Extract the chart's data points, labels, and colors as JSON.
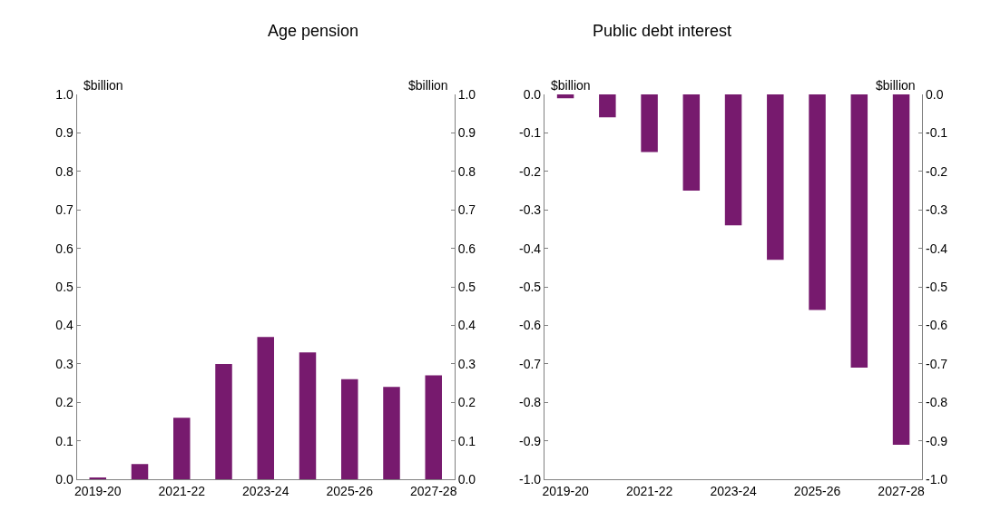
{
  "chart_data": [
    {
      "type": "bar",
      "title": "Age pension",
      "ylabel": "$billion",
      "y2label": "$billion",
      "categories": [
        "2019-20",
        null,
        "2021-22",
        null,
        "2023-24",
        null,
        "2025-26",
        null,
        "2027-28"
      ],
      "series": [
        {
          "color": "#771a6e",
          "values": [
            0.005,
            0.04,
            0.16,
            0.3,
            0.37,
            0.33,
            0.26,
            0.24,
            0.27
          ]
        }
      ],
      "ylim": [
        0,
        1
      ],
      "yticks": [
        {
          "value": 0,
          "label": "0.0"
        },
        0.1,
        0.2,
        0.3,
        0.4,
        0.5,
        0.6,
        0.7,
        0.8,
        0.9,
        {
          "value": 1,
          "label": "1.0"
        }
      ],
      "y2lim": [
        0,
        1
      ],
      "y2ticks": [
        {
          "value": 0,
          "label": "0.0"
        },
        0.1,
        0.2,
        0.3,
        0.4,
        0.5,
        0.6,
        0.7,
        0.8,
        0.9,
        {
          "value": 1,
          "label": "1.0"
        }
      ]
    },
    {
      "type": "bar",
      "title": "Public debt interest",
      "ylabel": "$billion",
      "y2label": "$billion",
      "categories": [
        "2019-20",
        null,
        "2021-22",
        null,
        "2023-24",
        null,
        "2025-26",
        null,
        "2027-28"
      ],
      "series": [
        {
          "color": "#771a6e",
          "values": [
            -0.01,
            -0.06,
            -0.15,
            -0.25,
            -0.34,
            -0.43,
            -0.56,
            -0.71,
            -0.91
          ]
        }
      ],
      "ylim": [
        -1,
        0
      ],
      "yticks": [
        {
          "value": -1,
          "label": "-1.0"
        },
        -0.9,
        -0.8,
        -0.7,
        -0.6,
        -0.5,
        -0.4,
        -0.3,
        -0.2,
        -0.1,
        {
          "value": 0,
          "label": "0.0"
        }
      ],
      "y2lim": [
        -1,
        0
      ],
      "y2ticks": [
        {
          "value": -1,
          "label": "-1.0"
        },
        -0.9,
        -0.8,
        -0.7,
        -0.6,
        -0.5,
        -0.4,
        -0.3,
        -0.2,
        -0.1,
        {
          "value": 0,
          "label": "0.0"
        }
      ]
    }
  ]
}
